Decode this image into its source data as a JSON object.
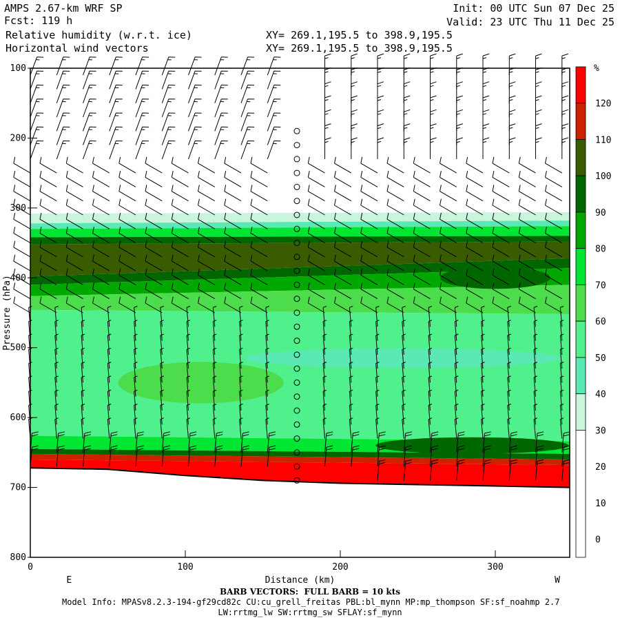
{
  "header": {
    "title": "AMPS 2.67-km WRF SP",
    "fcst": "Fcst: 119 h",
    "field1": "Relative humidity (w.r.t. ice)",
    "field2": "Horizontal wind vectors",
    "xy1": "XY= 269.1,195.5 to 398.9,195.5",
    "xy2": "XY= 269.1,195.5 to 398.9,195.5",
    "init": "Init: 00 UTC Sun 07 Dec 25",
    "valid": "Valid: 23 UTC Thu 11 Dec 25"
  },
  "footer": {
    "barb_note": "BARB VECTORS:  FULL BARB = 10 kts",
    "model_info": "Model Info: MPASv8.2.3-194-gf29cd82c CU:cu_grell_freitas PBL:bl_mynn MP:mp_thompson SF:sf_noahmp 2.7",
    "model_info2": "LW:rrtmg_lw SW:rrtmg_sw SFLAY:sf_mynn"
  },
  "chart_data": {
    "type": "heatmap",
    "xlabel": "Distance (km)",
    "x_left_label": "E",
    "x_right_label": "W",
    "ylabel": "Pressure (hPa)",
    "xlim": [
      0,
      348
    ],
    "ylim": [
      800,
      100
    ],
    "x_ticks": [
      0,
      100,
      200,
      300
    ],
    "y_ticks": [
      100,
      200,
      300,
      400,
      500,
      600,
      700,
      800
    ],
    "colorbar": {
      "unit": "%",
      "levels": [
        120,
        110,
        100,
        90,
        80,
        70,
        60,
        50,
        40,
        30,
        20,
        10,
        0
      ],
      "bins": [
        {
          "range": "above 120",
          "color": "#ff0000"
        },
        {
          "range": "110-120",
          "color": "#cc2200"
        },
        {
          "range": "100-110",
          "color": "#3a5c00"
        },
        {
          "range": "90-100",
          "color": "#006600"
        },
        {
          "range": "80-90",
          "color": "#00a800"
        },
        {
          "range": "70-80",
          "color": "#00e632"
        },
        {
          "range": "60-70",
          "color": "#4cdc4c"
        },
        {
          "range": "50-60",
          "color": "#50f08c"
        },
        {
          "range": "40-50",
          "color": "#5ae8b4"
        },
        {
          "range": "30-40",
          "color": "#c8f5dc"
        },
        {
          "range": "below 30",
          "color": "#ffffff"
        }
      ]
    },
    "rh_layers_hpa": [
      {
        "band": "310-340",
        "rh": "40-60"
      },
      {
        "band": "340-410",
        "rh": "90-110"
      },
      {
        "band": "410-440",
        "rh": "70-90"
      },
      {
        "band": "440-650",
        "rh": "50-70"
      },
      {
        "band": "650-680",
        "rh": "80-110"
      },
      {
        "band": "680-terrain",
        "rh": "above 110"
      }
    ],
    "terrain_hpa": {
      "x": [
        0,
        50,
        100,
        150,
        200,
        250,
        300,
        348
      ],
      "p": [
        672,
        674,
        683,
        690,
        694,
        696,
        698,
        700
      ]
    },
    "barb_columns_km": [
      0,
      17,
      34,
      51,
      68,
      85,
      102,
      119,
      136,
      153,
      172,
      190,
      207,
      224,
      241,
      258,
      275,
      292,
      309,
      326,
      343
    ],
    "calm_column_km": 172
  }
}
